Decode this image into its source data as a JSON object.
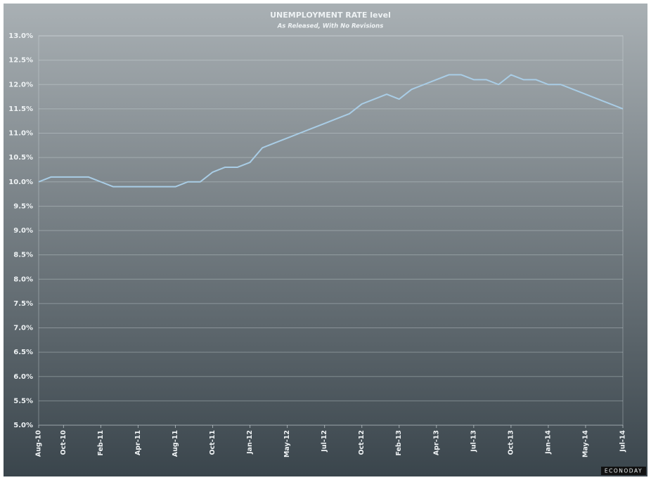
{
  "chart_data": {
    "type": "line",
    "title": "UNEMPLOYMENT RATE level",
    "subtitle": "As Released, With No Revisions",
    "source": "ECONODAY",
    "categories": [
      "Aug-10",
      null,
      "Oct-10",
      null,
      null,
      "Feb-11",
      null,
      null,
      "Apr-11",
      null,
      null,
      "Aug-11",
      null,
      null,
      "Oct-11",
      null,
      null,
      "Jan-12",
      null,
      null,
      "May-12",
      null,
      null,
      "Jul-12",
      null,
      null,
      "Oct-12",
      null,
      null,
      "Feb-13",
      null,
      null,
      "Apr-13",
      null,
      null,
      "Jul-13",
      null,
      null,
      "Oct-13",
      null,
      null,
      "Jan-14",
      null,
      null,
      "May-14",
      null,
      null,
      "Jul-14"
    ],
    "series": [
      {
        "name": "Unemployment rate",
        "color": "#a9cde6",
        "values": [
          10.0,
          10.1,
          10.1,
          10.1,
          10.1,
          10.0,
          9.9,
          9.9,
          9.9,
          9.9,
          9.9,
          9.9,
          10.0,
          10.0,
          10.2,
          10.3,
          10.3,
          10.4,
          10.7,
          10.8,
          10.9,
          11.0,
          11.1,
          11.2,
          11.3,
          11.4,
          11.6,
          11.7,
          11.8,
          11.7,
          11.9,
          12.0,
          12.1,
          12.2,
          12.2,
          12.1,
          12.1,
          12.0,
          12.2,
          12.1,
          12.1,
          12.0,
          12.0,
          11.9,
          11.8,
          11.7,
          11.6,
          11.5
        ]
      }
    ],
    "ylim": [
      5,
      13
    ],
    "yticks": [
      {
        "value": 5,
        "label": "5.0%"
      },
      {
        "value": 5.5,
        "label": "5.5%"
      },
      {
        "value": 6,
        "label": "6.0%"
      },
      {
        "value": 6.5,
        "label": "6.5%"
      },
      {
        "value": 7,
        "label": "7.0%"
      },
      {
        "value": 7.5,
        "label": "7.5%"
      },
      {
        "value": 8,
        "label": "8.0%"
      },
      {
        "value": 8.5,
        "label": "8.5%"
      },
      {
        "value": 9,
        "label": "9.0%"
      },
      {
        "value": 9.5,
        "label": "9.5%"
      },
      {
        "value": 10,
        "label": "10.0%"
      },
      {
        "value": 10.5,
        "label": "10.5%"
      },
      {
        "value": 11,
        "label": "11.0%"
      },
      {
        "value": 11.5,
        "label": "11.5%"
      },
      {
        "value": 12,
        "label": "12.0%"
      },
      {
        "value": 12.5,
        "label": "12.5%"
      },
      {
        "value": 13,
        "label": "13.0%"
      }
    ],
    "grid": true
  }
}
